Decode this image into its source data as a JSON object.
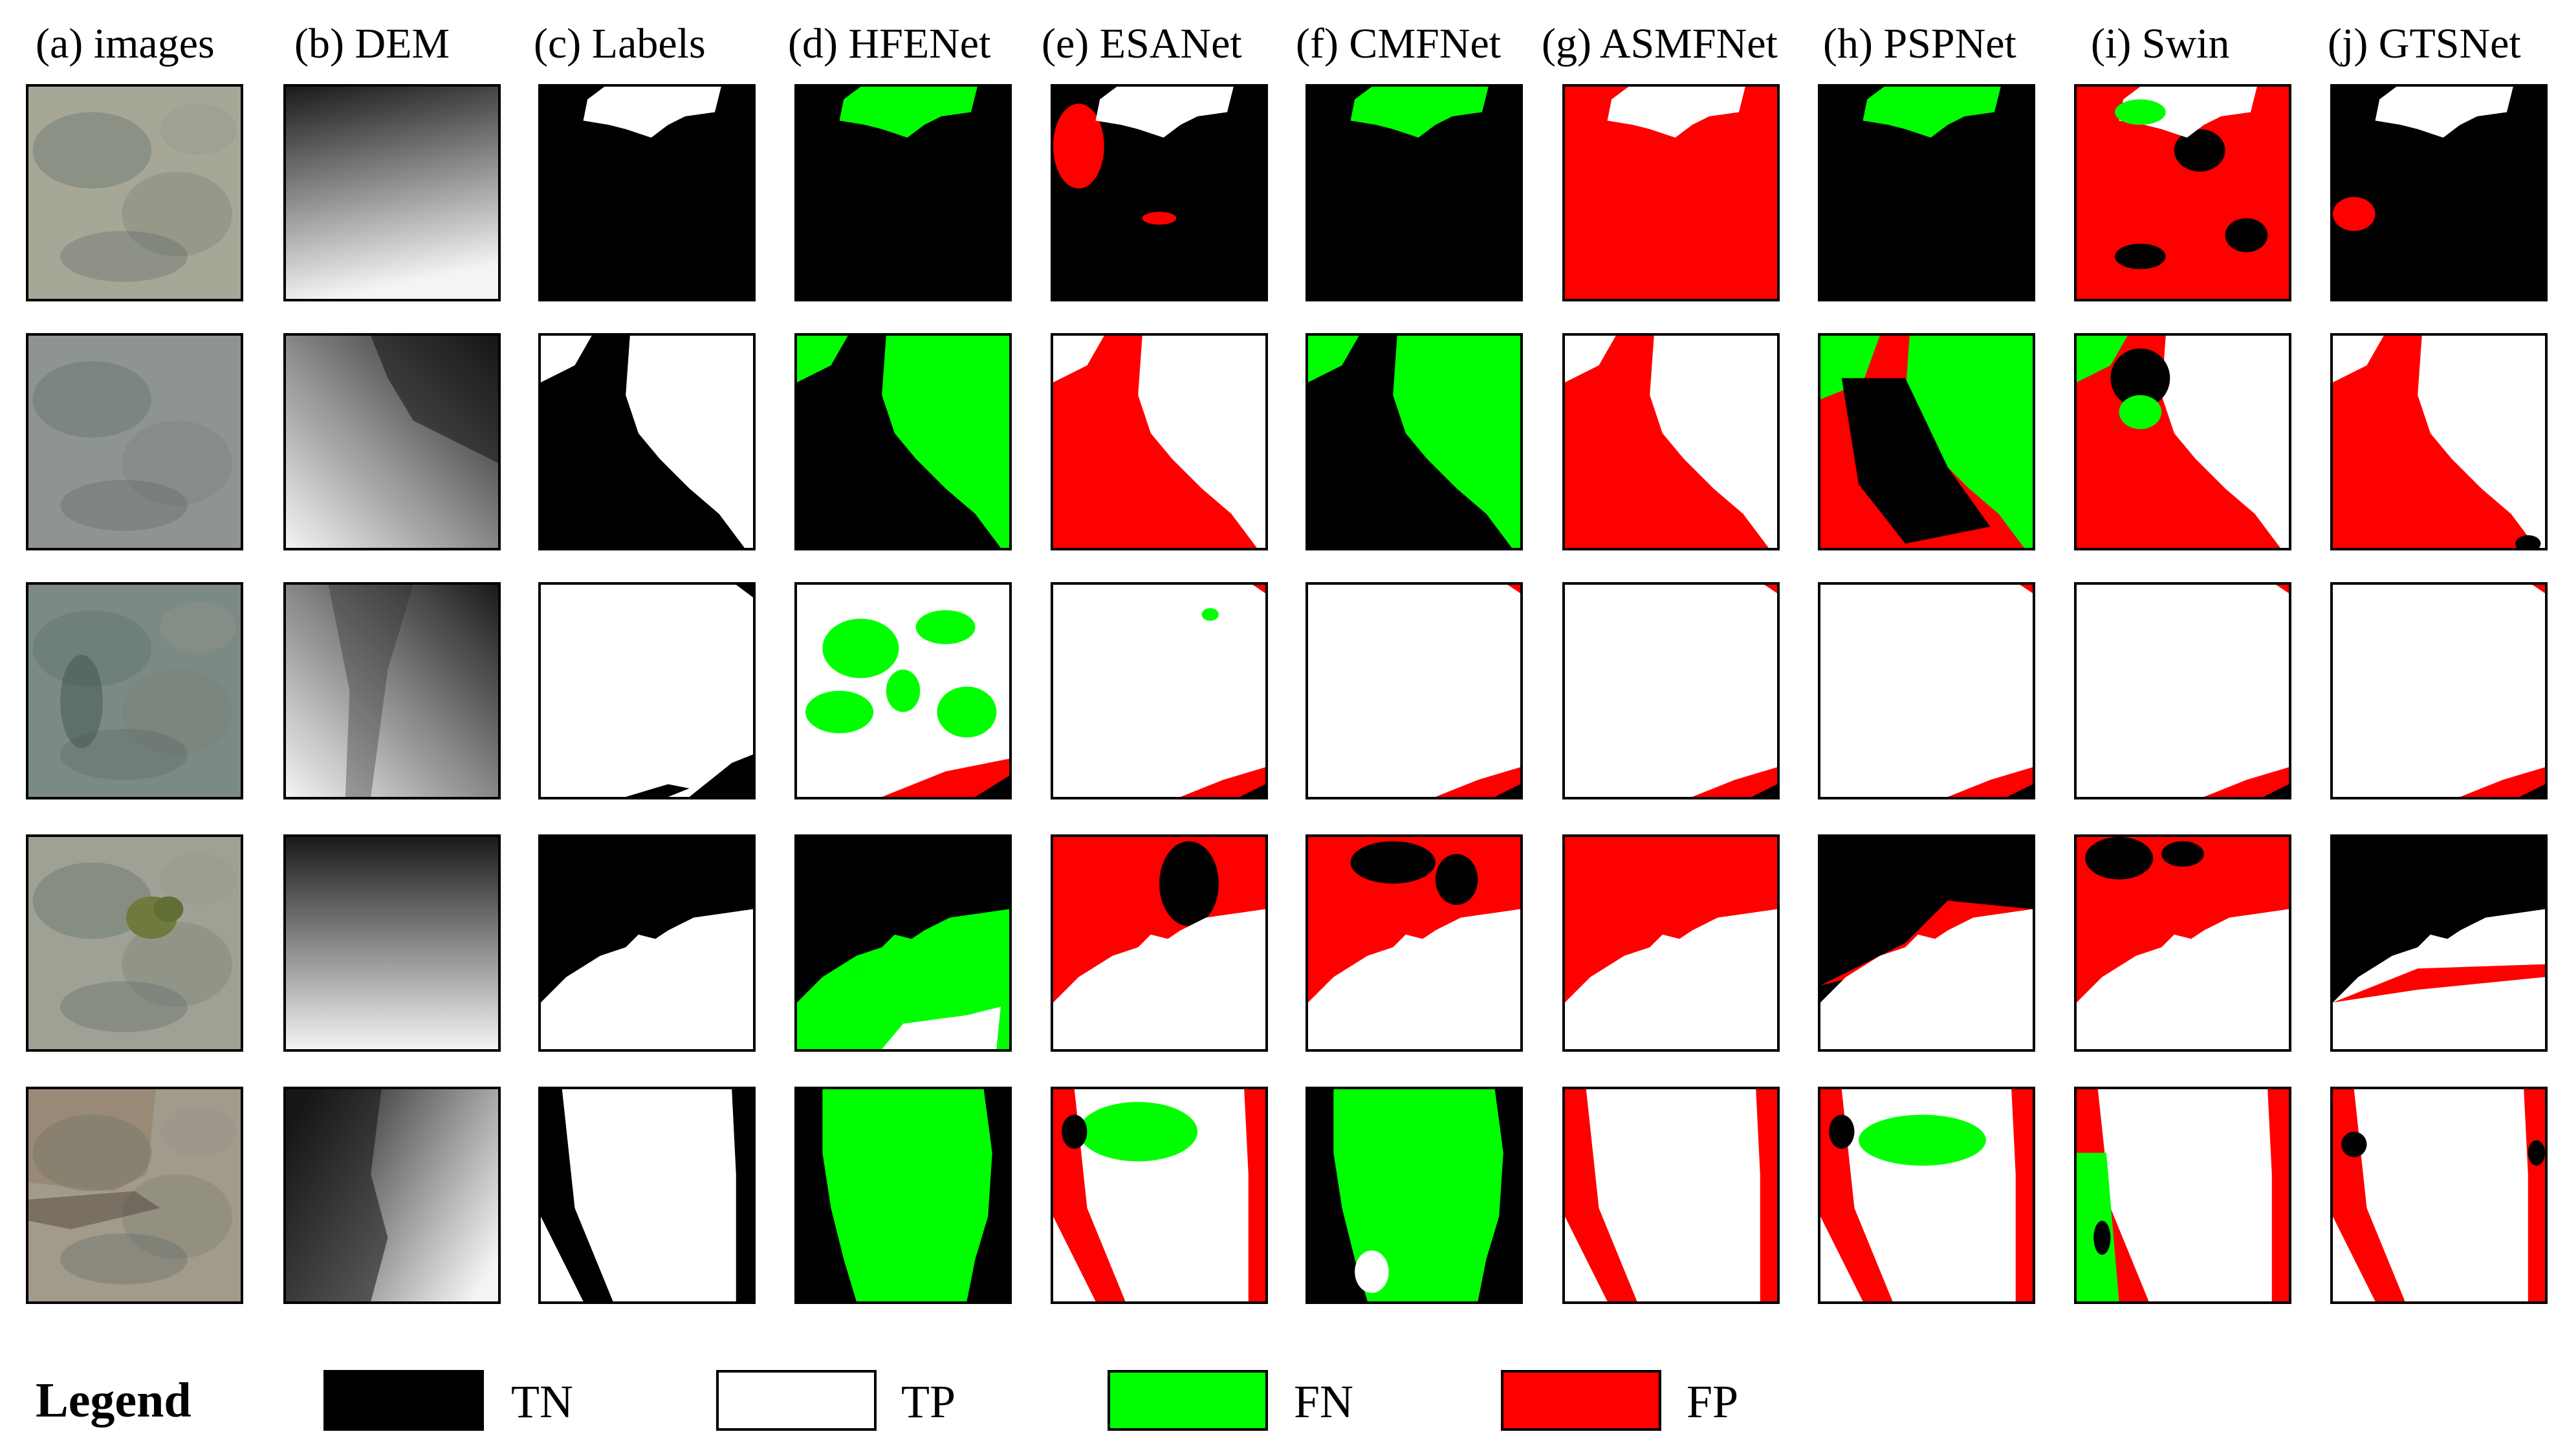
{
  "figure": {
    "columns": [
      {
        "label": "(a) images"
      },
      {
        "label": "(b) DEM"
      },
      {
        "label": "(c) Labels"
      },
      {
        "label": "(d) HFENet"
      },
      {
        "label": "(e) ESANet"
      },
      {
        "label": "(f) CMFNet"
      },
      {
        "label": "(g) ASMFNet"
      },
      {
        "label": "(h) PSPNet"
      },
      {
        "label": "(i) Swin"
      },
      {
        "label": "(j) GTSNet"
      }
    ],
    "row_count": 5
  },
  "legend": {
    "title": "Legend",
    "items": [
      {
        "label": "TN",
        "color": "#000000"
      },
      {
        "label": "TP",
        "color": "#ffffff"
      },
      {
        "label": "FN",
        "color": "#00ff00"
      },
      {
        "label": "FP",
        "color": "#ff0000"
      }
    ]
  },
  "colors": {
    "tn": "#000000",
    "tp": "#ffffff",
    "fn": "#00ff00",
    "fp": "#ff0000"
  }
}
